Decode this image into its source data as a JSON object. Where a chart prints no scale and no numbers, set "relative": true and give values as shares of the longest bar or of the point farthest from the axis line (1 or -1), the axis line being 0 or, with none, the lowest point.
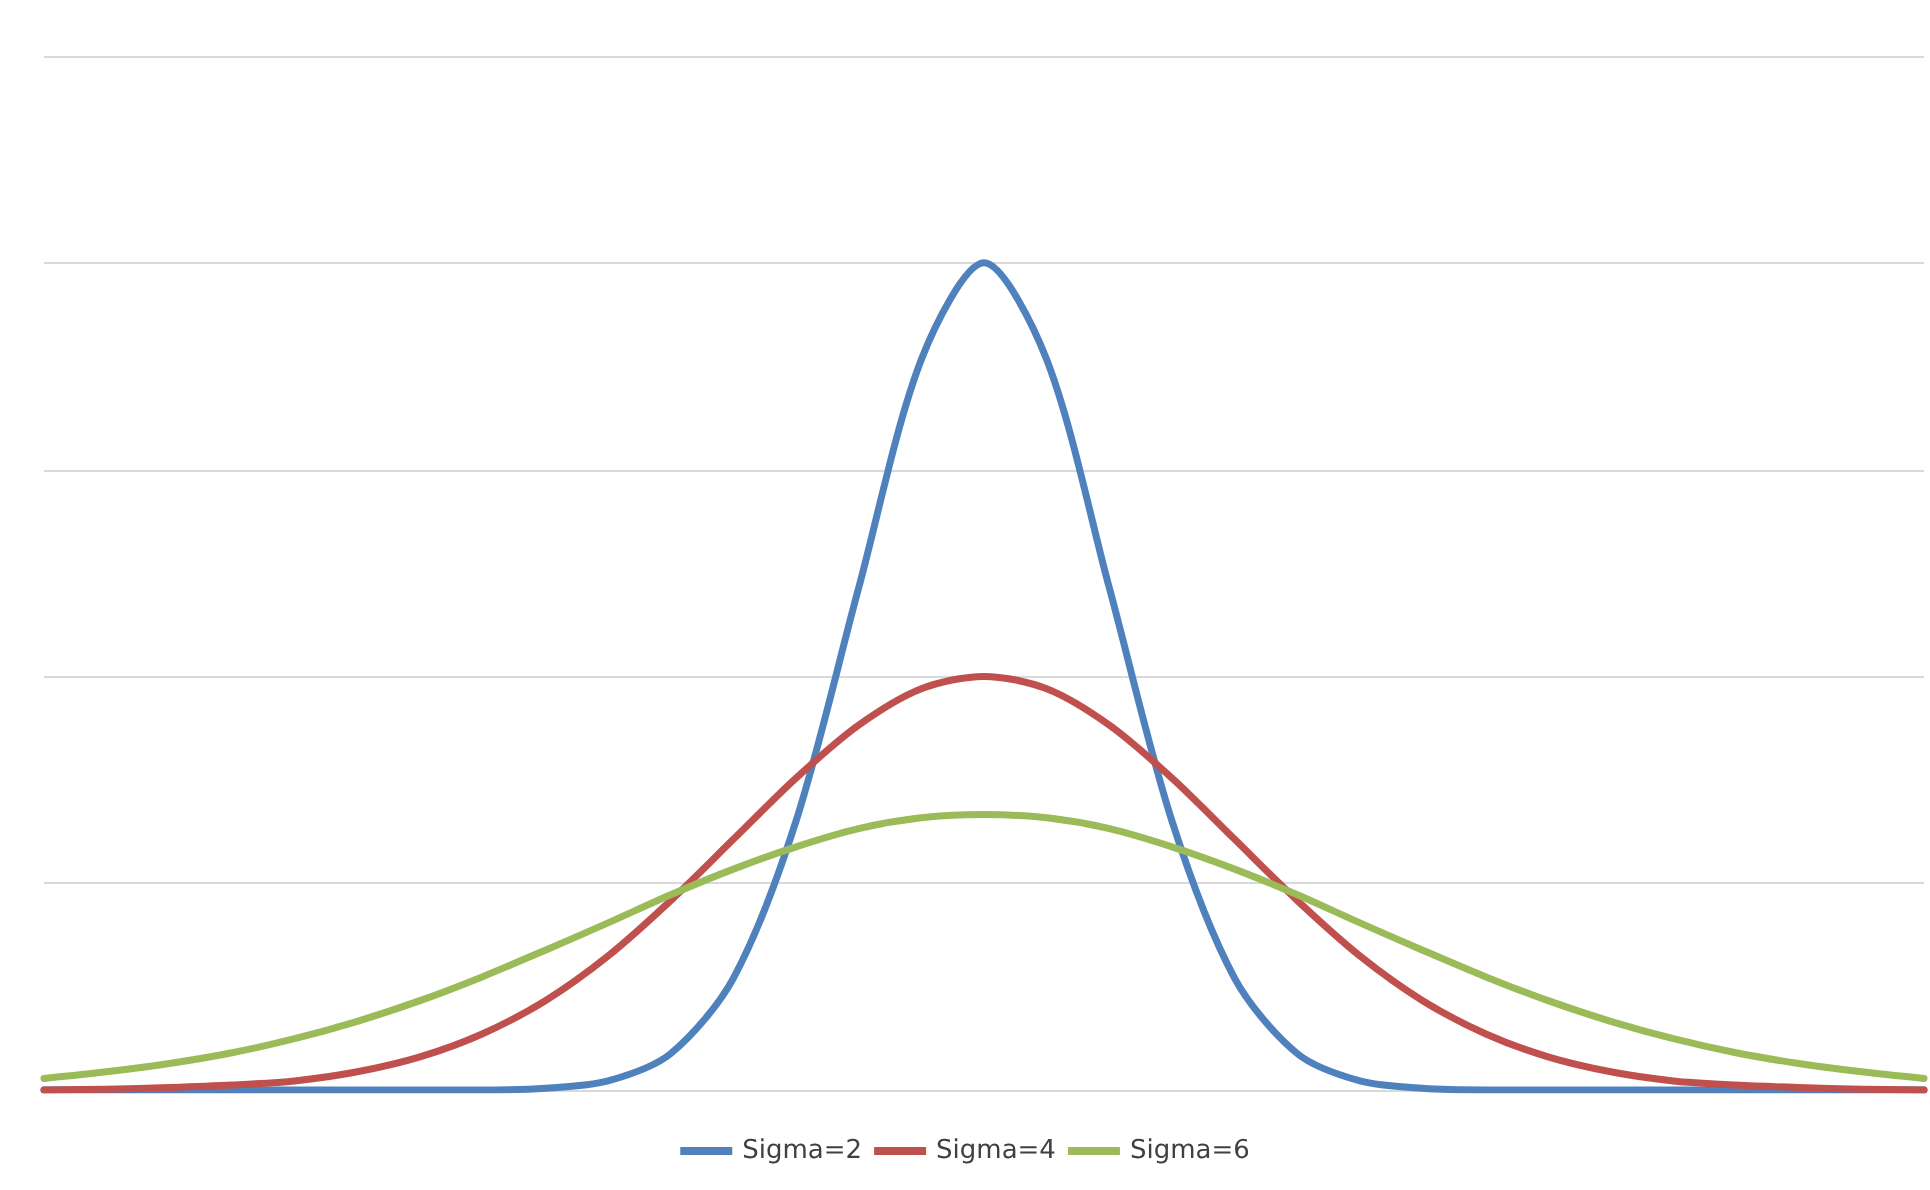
{
  "chart_data": {
    "type": "line",
    "relative": true,
    "grid": "y",
    "legend": "bottom",
    "marker": "none",
    "line_style": "solid",
    "categories": [
      null,
      null,
      null,
      null,
      null,
      null,
      null,
      null,
      null,
      null,
      null,
      null,
      null,
      null,
      null,
      null,
      null,
      null,
      null,
      null,
      null,
      null,
      null,
      null,
      null,
      null,
      null,
      null,
      null,
      null,
      null
    ],
    "series": [
      {
        "name": "Sigma=2",
        "color": "#4f81bd",
        "values": [
          0,
          0,
          0,
          0,
          0,
          0,
          0,
          0,
          0.002,
          0.011,
          0.044,
          0.135,
          0.325,
          0.607,
          0.883,
          1,
          0.883,
          0.607,
          0.325,
          0.135,
          0.044,
          0.011,
          0.002,
          0,
          0,
          0,
          0,
          0,
          0,
          0,
          0
        ]
      },
      {
        "name": "Sigma=4",
        "color": "#c0504d",
        "values": [
          0,
          0.001,
          0.003,
          0.006,
          0.011,
          0.022,
          0.04,
          0.068,
          0.108,
          0.162,
          0.229,
          0.303,
          0.377,
          0.441,
          0.485,
          0.5,
          0.485,
          0.441,
          0.377,
          0.303,
          0.229,
          0.162,
          0.108,
          0.068,
          0.04,
          0.022,
          0.011,
          0.006,
          0.003,
          0.001,
          0
        ]
      },
      {
        "name": "Sigma=6",
        "color": "#9bbb59",
        "values": [
          0.014,
          0.022,
          0.032,
          0.045,
          0.062,
          0.083,
          0.108,
          0.137,
          0.169,
          0.202,
          0.236,
          0.267,
          0.294,
          0.316,
          0.329,
          0.333,
          0.329,
          0.316,
          0.294,
          0.267,
          0.236,
          0.202,
          0.169,
          0.137,
          0.108,
          0.083,
          0.062,
          0.045,
          0.032,
          0.022,
          0.014
        ]
      }
    ]
  }
}
